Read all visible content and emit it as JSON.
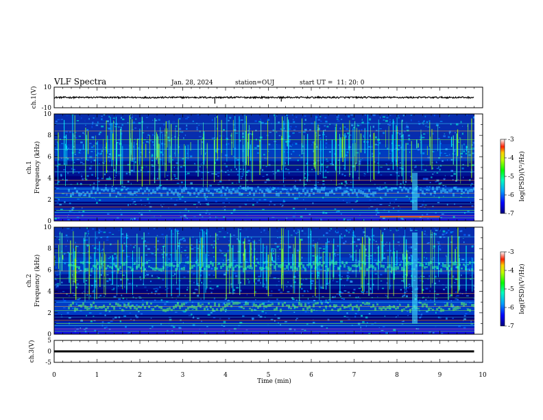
{
  "header": {
    "title": "VLF Spectra",
    "date": "Jan. 28, 2024",
    "station": "station=OUJ",
    "start": "start UT =  11: 20: 0"
  },
  "colors": {
    "background": "#ffffff",
    "spectrogram_base": "#00007a",
    "trace": "#000000"
  },
  "chart_data": [
    {
      "type": "line",
      "ylabel": "ch.1(V)",
      "ylim": [
        -10,
        10
      ],
      "y_ticks": [
        "10",
        "-10"
      ],
      "grid": false,
      "series": [
        {
          "x": [
            0,
            3.72,
            3.75,
            5.3,
            9.8
          ],
          "values": [
            0,
            0,
            -6,
            -4,
            0
          ]
        }
      ]
    },
    {
      "type": "heatmap",
      "ylabel": "ch.1\nFrequency (kHz)",
      "ylim": [
        0,
        10
      ],
      "y_ticks": [
        "0",
        "2",
        "4",
        "6",
        "8",
        "10"
      ],
      "colorbar": {
        "label": "log(PSD)(V²/Hz)",
        "ticks": [
          "-3",
          "-4",
          "-5",
          "-6",
          "-7"
        ],
        "range": [
          -7,
          -3
        ]
      },
      "grid": false
    },
    {
      "type": "heatmap",
      "ylabel": "ch.2\nFrequency (kHz)",
      "ylim": [
        0,
        10
      ],
      "y_ticks": [
        "0",
        "2",
        "4",
        "6",
        "8",
        "10"
      ],
      "colorbar": {
        "label": "log(PSD)(V²/Hz)",
        "ticks": [
          "-3",
          "-4",
          "-5",
          "-6",
          "-7"
        ],
        "range": [
          -7,
          -3
        ]
      },
      "grid": false
    },
    {
      "type": "line",
      "ylabel": "ch.3(V)",
      "ylim": [
        -5,
        5
      ],
      "y_ticks": [
        "5",
        "0",
        "-5"
      ],
      "grid": false,
      "series": [
        {
          "x": [
            0,
            9.8
          ],
          "values": [
            0,
            0
          ]
        }
      ]
    }
  ],
  "x_axis": {
    "label": "Time (min)",
    "range": [
      0,
      10
    ],
    "ticks": [
      "0",
      "1",
      "2",
      "3",
      "4",
      "5",
      "6",
      "7",
      "8",
      "9",
      "10"
    ]
  }
}
